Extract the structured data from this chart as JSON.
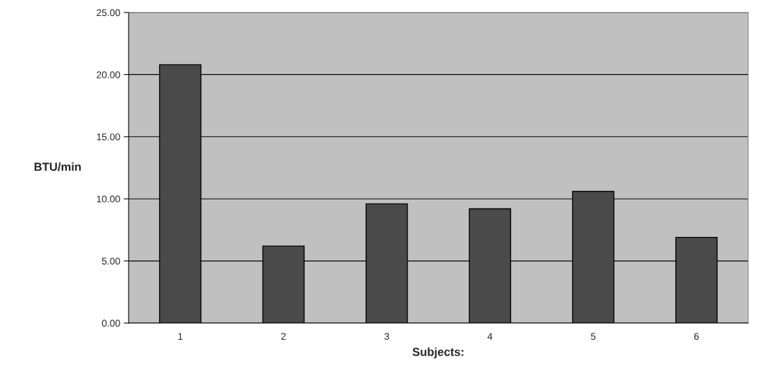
{
  "chart_data": {
    "type": "bar",
    "xlabel": "Subjects:",
    "ylabel": "BTU/min",
    "categories": [
      "1",
      "2",
      "3",
      "4",
      "5",
      "6"
    ],
    "values": [
      20.8,
      6.2,
      9.6,
      9.2,
      10.6,
      6.9
    ],
    "color": "#4a4a4a",
    "ylim": [
      0,
      25
    ],
    "yticks": [
      {
        "value": 0,
        "label": "0.00"
      },
      {
        "value": 5,
        "label": "5.00"
      },
      {
        "value": 10,
        "label": "10.00"
      },
      {
        "value": 15,
        "label": "15.00"
      },
      {
        "value": 20,
        "label": "20.00"
      },
      {
        "value": 25,
        "label": "25.00"
      }
    ],
    "grid": "y",
    "legend": false
  }
}
